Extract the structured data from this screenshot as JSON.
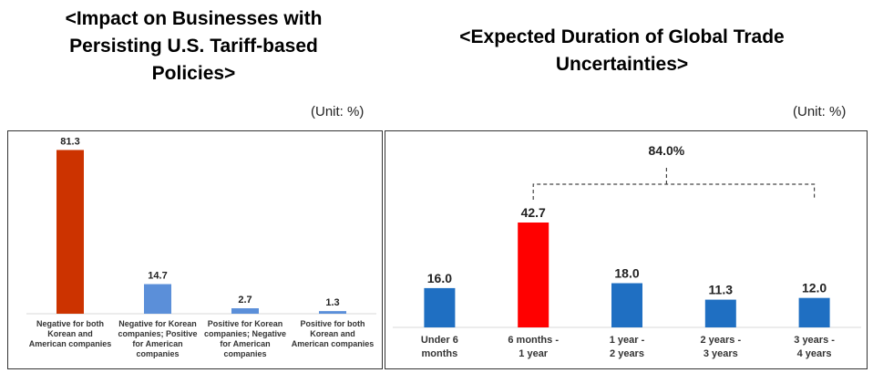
{
  "chart_data": [
    {
      "type": "bar",
      "title": "<Impact on Businesses with Persisting U.S. Tariff-based Policies>",
      "unit": "(Unit: %)",
      "categories": [
        "Negative for both Korean and American companies",
        "Negative for Korean companies; Positive for American companies",
        "Positive for Korean companies; Negative for American companies",
        "Positive for both Korean and American companies"
      ],
      "category_lines": [
        [
          "Negative for both",
          "Korean and",
          "American companies"
        ],
        [
          "Negative for Korean",
          "companies; Positive",
          "for American",
          "companies"
        ],
        [
          "Positive for Korean",
          "companies; Negative",
          "for American",
          "companies"
        ],
        [
          "Positive for both",
          "Korean and",
          "American companies"
        ]
      ],
      "values": [
        81.3,
        14.7,
        2.7,
        1.3
      ],
      "value_labels": [
        "81.3",
        "14.7",
        "2.7",
        "1.3"
      ],
      "colors": [
        "#cc3300",
        "#5b8fd9",
        "#5b8fd9",
        "#5b8fd9"
      ],
      "ylim": [
        0,
        85
      ],
      "grid": false
    },
    {
      "type": "bar",
      "title": "<Expected Duration of Global Trade Uncertainties>",
      "unit": "(Unit: %)",
      "categories": [
        "Under 6 months",
        "6 months - 1 year",
        "1 year - 2 years",
        "2 years - 3 years",
        "3 years - 4 years"
      ],
      "category_lines": [
        [
          "Under 6",
          "months"
        ],
        [
          "6 months -",
          "1 year"
        ],
        [
          "1 year -",
          "2 years"
        ],
        [
          "2 years -",
          "3 years"
        ],
        [
          "3 years -",
          "4 years"
        ]
      ],
      "values": [
        16.0,
        42.7,
        18.0,
        11.3,
        12.0
      ],
      "value_labels": [
        "16.0",
        "42.7",
        "18.0",
        "11.3",
        "12.0"
      ],
      "colors": [
        "#1f6fc2",
        "#ff0000",
        "#1f6fc2",
        "#1f6fc2",
        "#1f6fc2"
      ],
      "ylim": [
        0,
        50
      ],
      "grid": false,
      "annotation": {
        "text": "84.0%",
        "from_category": 1,
        "to_category": 4
      }
    }
  ],
  "left_title_lines": [
    "<Impact on Businesses with",
    "Persisting U.S. Tariff-based",
    "Policies>"
  ],
  "right_title_lines": [
    "<Expected Duration of Global Trade",
    "Uncertainties>"
  ]
}
